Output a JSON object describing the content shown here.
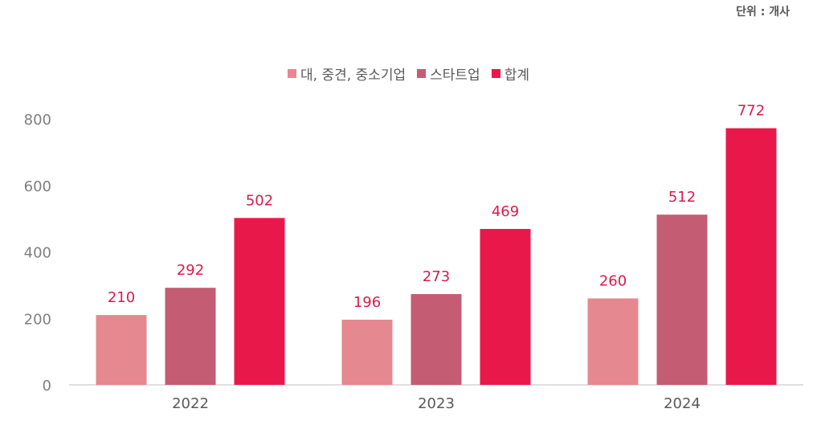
{
  "unit_label": "단위 : 개사",
  "colors": {
    "series_1": "#e5888f",
    "series_2": "#c45c74",
    "series_3": "#e8194a",
    "data_label": "#d91b4b",
    "axis_text": "#7f7f7f",
    "axis_line": "#bfbfbf"
  },
  "chart_data": {
    "type": "bar",
    "categories": [
      "2022",
      "2023",
      "2024"
    ],
    "series": [
      {
        "name": "대, 중견, 중소기업",
        "values": [
          210,
          196,
          260
        ]
      },
      {
        "name": "스타트업",
        "values": [
          292,
          273,
          512
        ]
      },
      {
        "name": "합계",
        "values": [
          502,
          469,
          772
        ]
      }
    ],
    "yticks": [
      0,
      200,
      400,
      600,
      800
    ],
    "ylim": [
      0,
      800
    ],
    "grid": false,
    "legend_position": "top-center",
    "data_labels": true
  }
}
